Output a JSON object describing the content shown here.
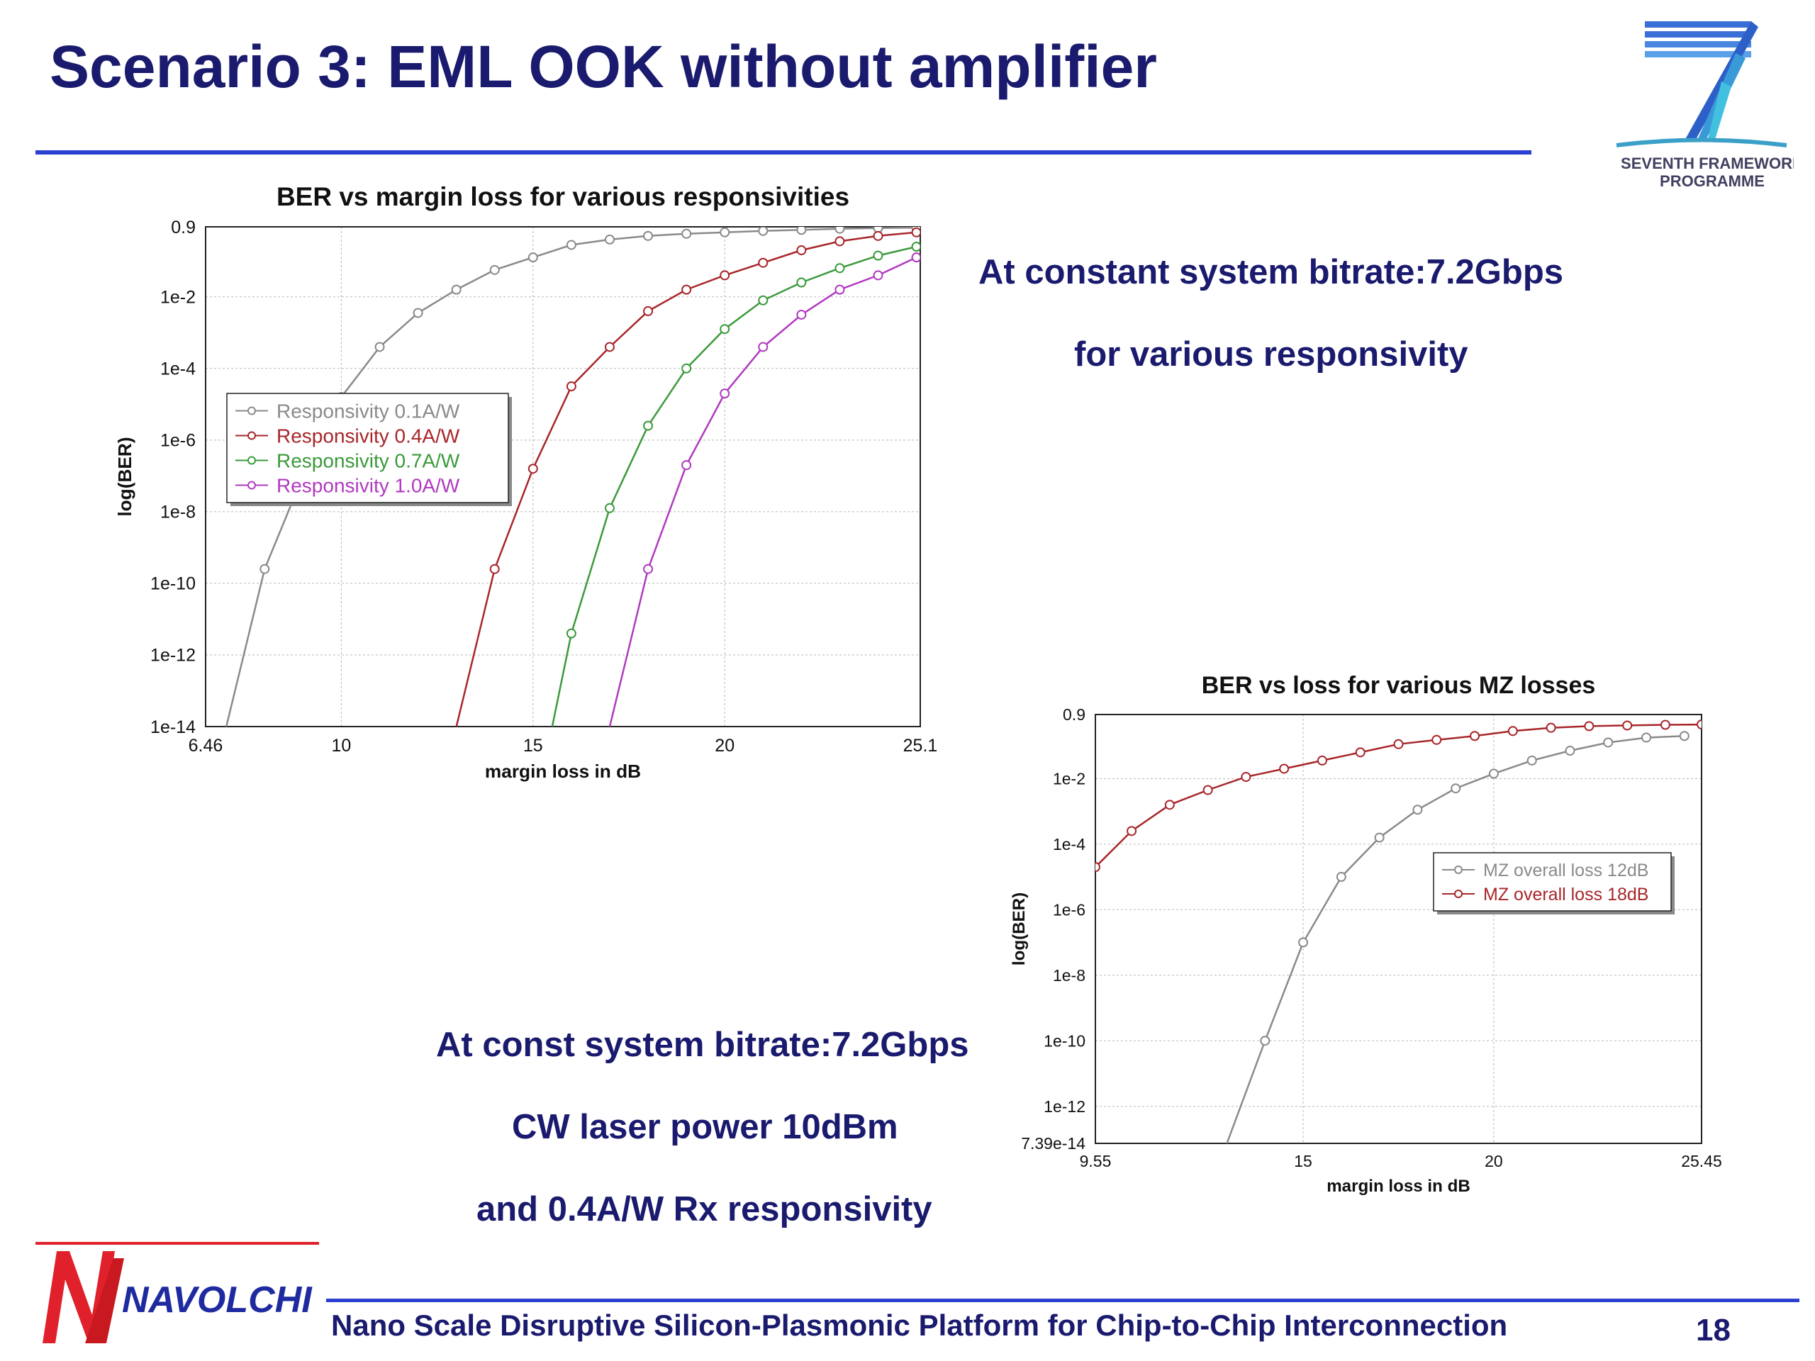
{
  "slide": {
    "title": "Scenario 3: EML OOK without amplifier",
    "notes": [
      "At constant system bitrate:7.2Gbps",
      "for various responsivity",
      "At const system bitrate:7.2Gbps",
      "CW laser power 10dBm",
      "and 0.4A/W Rx responsivity"
    ],
    "footer": "Nano Scale Disruptive Silicon-Plasmonic Platform for Chip-to-Chip Interconnection",
    "page_number": "18",
    "fp7_logo_text": [
      "SEVENTH FRAMEWORK",
      "PROGRAMME"
    ],
    "navolchi_logo_text": "NAVOLCHI"
  },
  "colors": {
    "title": "#1a1a6e",
    "rule": "#2b3fd0",
    "series_gray": "#8a8a8a",
    "series_red": "#a8262a",
    "series_green": "#3b9a3b",
    "series_magenta": "#b03ac0"
  },
  "chart_data": [
    {
      "type": "line",
      "title": "BER vs margin loss for various responsivities",
      "xlabel": "margin loss in dB",
      "ylabel": "log(BER)",
      "xlim": [
        6.46,
        25.1
      ],
      "ylim_log10": [
        -14,
        -0.046
      ],
      "y_scale": "log",
      "xticks": [
        "6.46",
        "10",
        "15",
        "20",
        "25.1"
      ],
      "yticks": [
        "0.9",
        "1e-2",
        "1e-4",
        "1e-6",
        "1e-8",
        "1e-10",
        "1e-12",
        "1e-14"
      ],
      "ytick_values_log10": [
        -0.046,
        -2,
        -4,
        -6,
        -8,
        -10,
        -12,
        -14
      ],
      "grid": true,
      "legend_position": "left-middle",
      "series": [
        {
          "name": "Responsivity 0.1A/W",
          "color": "#8a8a8a",
          "x": [
            7.0,
            8.0,
            9.0,
            10.0,
            11.0,
            12.0,
            13.0,
            14.0,
            15.0,
            16.0,
            17.0,
            18.0,
            19.0,
            20.0,
            21.0,
            22.0,
            23.0,
            24.0,
            25.0
          ],
          "log10y": [
            -14.0,
            -9.6,
            -7.0,
            -4.8,
            -3.4,
            -2.45,
            -1.8,
            -1.25,
            -0.9,
            -0.55,
            -0.4,
            -0.3,
            -0.24,
            -0.2,
            -0.16,
            -0.13,
            -0.1,
            -0.08,
            -0.07
          ],
          "markers_from": 1
        },
        {
          "name": "Responsivity 0.4A/W",
          "color": "#a8262a",
          "x": [
            13.0,
            14.0,
            15.0,
            16.0,
            17.0,
            18.0,
            19.0,
            20.0,
            21.0,
            22.0,
            23.0,
            24.0,
            25.0
          ],
          "log10y": [
            -14.0,
            -9.6,
            -6.8,
            -4.5,
            -3.4,
            -2.4,
            -1.8,
            -1.4,
            -1.05,
            -0.7,
            -0.45,
            -0.3,
            -0.2
          ],
          "markers_from": 1
        },
        {
          "name": "Responsivity 0.7A/W",
          "color": "#3b9a3b",
          "x": [
            15.5,
            16.0,
            17.0,
            18.0,
            19.0,
            20.0,
            21.0,
            22.0,
            23.0,
            24.0,
            25.0
          ],
          "log10y": [
            -14.0,
            -11.4,
            -7.9,
            -5.6,
            -4.0,
            -2.9,
            -2.1,
            -1.6,
            -1.2,
            -0.85,
            -0.6
          ],
          "markers_from": 1
        },
        {
          "name": "Responsivity 1.0A/W",
          "color": "#b03ac0",
          "x": [
            17.0,
            18.0,
            19.0,
            20.0,
            21.0,
            22.0,
            23.0,
            24.0,
            25.0
          ],
          "log10y": [
            -14.0,
            -9.6,
            -6.7,
            -4.7,
            -3.4,
            -2.5,
            -1.8,
            -1.4,
            -0.9
          ],
          "markers_from": 1
        }
      ]
    },
    {
      "type": "line",
      "title": "BER vs loss for various MZ losses",
      "xlabel": "margin loss in dB",
      "ylabel": "log(BER)",
      "xlim": [
        9.55,
        25.45
      ],
      "ylim_log10": [
        -13.131,
        -0.046
      ],
      "y_scale": "log",
      "xticks": [
        "9.55",
        "15",
        "20",
        "25.45"
      ],
      "yticks": [
        "0.9",
        "1e-2",
        "1e-4",
        "1e-6",
        "1e-8",
        "1e-10",
        "1e-12",
        "7.39e-14"
      ],
      "ytick_values_log10": [
        -0.046,
        -2,
        -4,
        -6,
        -8,
        -10,
        -12,
        -13.131
      ],
      "grid": true,
      "legend_position": "right-middle",
      "series": [
        {
          "name": "MZ overall loss 12dB",
          "color": "#8a8a8a",
          "x": [
            13.0,
            14.0,
            15.0,
            16.0,
            17.0,
            18.0,
            19.0,
            20.0,
            21.0,
            22.0,
            23.0,
            24.0,
            25.0
          ],
          "log10y": [
            -13.131,
            -10.0,
            -7.0,
            -5.0,
            -3.8,
            -2.95,
            -2.3,
            -1.85,
            -1.45,
            -1.15,
            -0.9,
            -0.75,
            -0.7
          ],
          "markers_from": 1
        },
        {
          "name": "MZ overall loss 18dB",
          "color": "#a8262a",
          "x": [
            9.55,
            10.5,
            11.5,
            12.5,
            13.5,
            14.5,
            15.5,
            16.5,
            17.5,
            18.5,
            19.5,
            20.5,
            21.5,
            22.5,
            23.5,
            24.5,
            25.45
          ],
          "log10y": [
            -4.7,
            -3.6,
            -2.8,
            -2.35,
            -1.95,
            -1.7,
            -1.45,
            -1.2,
            -0.95,
            -0.82,
            -0.7,
            -0.55,
            -0.45,
            -0.4,
            -0.38,
            -0.36,
            -0.35
          ],
          "markers_from": 0
        }
      ]
    }
  ]
}
